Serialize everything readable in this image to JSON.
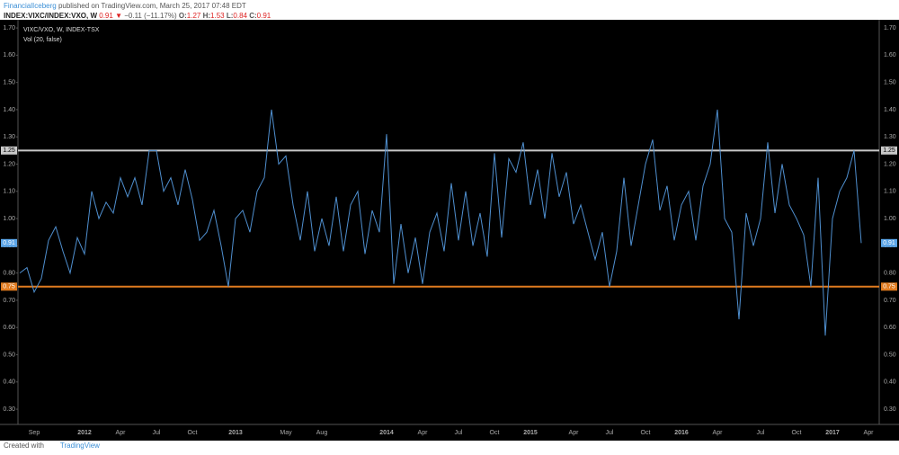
{
  "header": {
    "publisher": "FinancialIceberg",
    "published": "published on TradingView.com, March 25, 2017 07:48 EDT",
    "symbol": "INDEX:VIXC/INDEX:VXO, W",
    "last": "0.91",
    "arrow": "▼",
    "change": "−0.11 (−11.17%)",
    "ohlc": [
      {
        "key": "O:",
        "value": "1.27"
      },
      {
        "key": "H:",
        "value": "1.53"
      },
      {
        "key": "L:",
        "value": "0.84"
      },
      {
        "key": "C:",
        "value": "0.91"
      }
    ]
  },
  "chart_data": {
    "type": "line",
    "legend": [
      "VIXC/VXO, W, INDEX-TSX",
      "Vol (20, false)"
    ],
    "color": "#4f8fcf",
    "categories": [
      null,
      null,
      "Sep",
      null,
      null,
      null,
      null,
      null,
      null,
      "2012",
      null,
      null,
      null,
      null,
      "Apr",
      null,
      null,
      null,
      null,
      "Jul",
      null,
      null,
      null,
      null,
      "Oct",
      null,
      null,
      null,
      null,
      null,
      "2013",
      null,
      null,
      null,
      null,
      null,
      null,
      "May",
      null,
      null,
      null,
      null,
      "Aug",
      null,
      null,
      null,
      null,
      null,
      null,
      null,
      null,
      "2014",
      null,
      null,
      null,
      null,
      "Apr",
      null,
      null,
      null,
      null,
      "Jul",
      null,
      null,
      null,
      null,
      "Oct",
      null,
      null,
      null,
      null,
      "2015",
      null,
      null,
      null,
      null,
      null,
      "Apr",
      null,
      null,
      null,
      null,
      "Jul",
      null,
      null,
      null,
      null,
      "Oct",
      null,
      null,
      null,
      null,
      "2016",
      null,
      null,
      null,
      null,
      "Apr",
      null,
      null,
      null,
      null,
      null,
      "Jul",
      null,
      null,
      null,
      null,
      "Oct",
      null,
      null,
      null,
      null,
      "2017",
      null,
      null,
      null,
      null,
      "Apr"
    ],
    "values": [
      0.8,
      0.82,
      0.73,
      0.78,
      0.92,
      0.97,
      0.88,
      0.8,
      0.93,
      0.87,
      1.1,
      1.0,
      1.06,
      1.02,
      1.15,
      1.08,
      1.15,
      1.05,
      1.25,
      1.25,
      1.1,
      1.15,
      1.05,
      1.18,
      1.07,
      0.92,
      0.95,
      1.03,
      0.9,
      0.75,
      1.0,
      1.03,
      0.95,
      1.1,
      1.15,
      1.4,
      1.2,
      1.23,
      1.05,
      0.92,
      1.1,
      0.88,
      1.0,
      0.9,
      1.08,
      0.88,
      1.05,
      1.1,
      0.87,
      1.03,
      0.95,
      1.31,
      0.76,
      0.98,
      0.8,
      0.93,
      0.76,
      0.95,
      1.02,
      0.88,
      1.13,
      0.92,
      1.1,
      0.9,
      1.02,
      0.86,
      1.24,
      0.93,
      1.22,
      1.17,
      1.28,
      1.05,
      1.18,
      1.0,
      1.24,
      1.08,
      1.17,
      0.98,
      1.05,
      0.95,
      0.85,
      0.95,
      0.75,
      0.88,
      1.15,
      0.9,
      1.05,
      1.2,
      1.29,
      1.03,
      1.12,
      0.92,
      1.05,
      1.1,
      0.92,
      1.12,
      1.2,
      1.4,
      1.0,
      0.95,
      0.63,
      1.02,
      0.9,
      1.0,
      1.28,
      1.02,
      1.2,
      1.05,
      1.0,
      0.94,
      0.75,
      1.15,
      0.57,
      1.0,
      1.1,
      1.15,
      1.25,
      0.91,
      null
    ],
    "ylim": [
      0.244,
      1.73
    ],
    "yticks": [
      {
        "value": 0.3,
        "label": "0.30"
      },
      {
        "value": 0.4,
        "label": "0.40"
      },
      {
        "value": 0.5,
        "label": "0.50"
      },
      {
        "value": 0.6,
        "label": "0.60"
      },
      {
        "value": 0.7,
        "label": "0.70"
      },
      {
        "value": 0.8,
        "label": "0.80"
      },
      {
        "value": 0.9,
        "label": "0.90"
      },
      {
        "value": 1.0,
        "label": "1.00"
      },
      {
        "value": 1.1,
        "label": "1.10"
      },
      {
        "value": 1.2,
        "label": "1.20"
      },
      {
        "value": 1.3,
        "label": "1.30"
      },
      {
        "value": 1.4,
        "label": "1.40"
      },
      {
        "value": 1.5,
        "label": "1.50"
      },
      {
        "value": 1.6,
        "label": "1.60"
      },
      {
        "value": 1.7,
        "label": "1.70"
      }
    ],
    "hlines": [
      {
        "value": 1.25,
        "label": "1.25",
        "color": "#c8c8c8"
      },
      {
        "value": 0.75,
        "label": "0.75",
        "color": "#e07b1f"
      }
    ],
    "last_price": {
      "value": 0.91,
      "label": "0.91",
      "color": "#5ba4e6"
    }
  },
  "footer": {
    "text": "Created with",
    "brand": "TradingView"
  }
}
